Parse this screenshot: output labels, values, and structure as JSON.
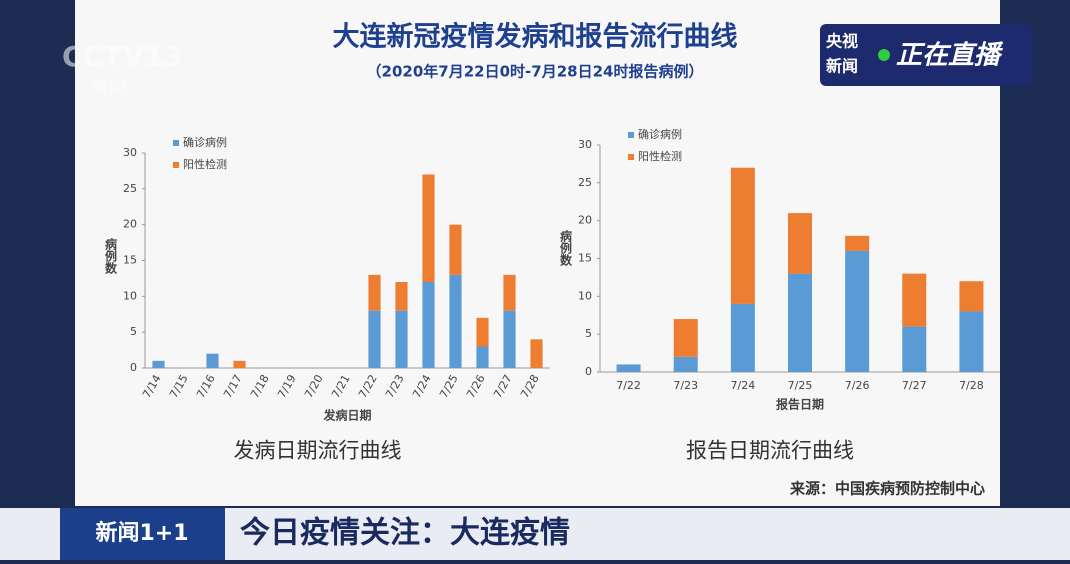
{
  "overlay": {
    "logo": "CCTV13",
    "logo_sub": "新闻",
    "live_brand_1": "央视",
    "live_brand_2": "新闻",
    "live": "正在直播",
    "program": "新闻1+1",
    "banner": "今日疫情关注：大连疫情"
  },
  "slide": {
    "title": "大连新冠疫情发病和报告流行曲线",
    "subtitle": "（2020年7月22日0时-7月28日24时报告病例）",
    "source": "来源：中国疾病预防控制中心"
  },
  "chart_data": [
    {
      "type": "bar",
      "stacked": true,
      "caption": "发病日期流行曲线",
      "x_label": "发病日期",
      "y_label": "病例数",
      "categories": [
        "7/14",
        "7/15",
        "7/16",
        "7/17",
        "7/18",
        "7/19",
        "7/20",
        "7/21",
        "7/22",
        "7/23",
        "7/24",
        "7/25",
        "7/26",
        "7/27",
        "7/28"
      ],
      "series": [
        {
          "name": "确诊病例",
          "color": "#5b9bd5",
          "values": [
            1,
            0,
            2,
            0,
            0,
            0,
            0,
            0,
            8,
            8,
            12,
            13,
            3,
            8,
            0
          ]
        },
        {
          "name": "阳性检测",
          "color": "#ed7d31",
          "values": [
            0,
            0,
            0,
            1,
            0,
            0,
            0,
            0,
            5,
            4,
            15,
            7,
            4,
            5,
            4
          ]
        }
      ],
      "ylim": [
        0,
        30
      ],
      "yticks": [
        0,
        5,
        10,
        15,
        20,
        25,
        30
      ],
      "legend": "upper left"
    },
    {
      "type": "bar",
      "stacked": true,
      "caption": "报告日期流行曲线",
      "x_label": "报告日期",
      "y_label": "病例数",
      "categories": [
        "7/22",
        "7/23",
        "7/24",
        "7/25",
        "7/26",
        "7/27",
        "7/28"
      ],
      "series": [
        {
          "name": "确诊病例",
          "color": "#5b9bd5",
          "values": [
            1,
            2,
            9,
            13,
            16,
            6,
            8
          ]
        },
        {
          "name": "阳性检测",
          "color": "#ed7d31",
          "values": [
            0,
            5,
            18,
            8,
            2,
            7,
            4
          ]
        }
      ],
      "ylim": [
        0,
        30
      ],
      "yticks": [
        0,
        5,
        10,
        15,
        20,
        25,
        30
      ],
      "legend": "upper left"
    }
  ]
}
